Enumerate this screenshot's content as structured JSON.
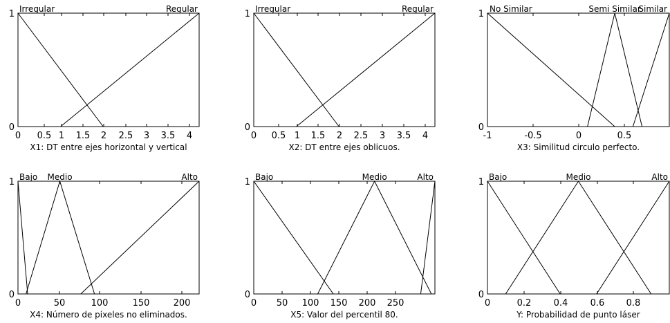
{
  "chart_data": [
    {
      "type": "line",
      "xlabel": "X1: DT entre ejes horizontal y vertical",
      "xlim": [
        0,
        4.25
      ],
      "ylim": [
        0,
        1
      ],
      "xticks": [
        "0",
        "0.5",
        "1",
        "1.5",
        "2",
        "2.5",
        "3",
        "3.5",
        "4"
      ],
      "yticks": [
        "0",
        "1"
      ],
      "series": [
        {
          "name": "Irregular",
          "x": [
            0,
            2
          ],
          "y": [
            1,
            0
          ]
        },
        {
          "name": "Regular",
          "x": [
            1,
            4.25
          ],
          "y": [
            0,
            1
          ]
        }
      ]
    },
    {
      "type": "line",
      "xlabel": "X2: DT entre ejes oblicuos.",
      "xlim": [
        0,
        4.25
      ],
      "ylim": [
        0,
        1
      ],
      "xticks": [
        "0",
        "0.5",
        "1",
        "1.5",
        "2",
        "2.5",
        "3",
        "3.5",
        "4"
      ],
      "yticks": [
        "0",
        "1"
      ],
      "series": [
        {
          "name": "Irregular",
          "x": [
            0,
            2
          ],
          "y": [
            1,
            0
          ]
        },
        {
          "name": "Regular",
          "x": [
            1,
            4.25
          ],
          "y": [
            0,
            1
          ]
        }
      ]
    },
    {
      "type": "line",
      "xlabel": "X3: Similitud circulo perfecto.",
      "xlim": [
        -1,
        1
      ],
      "ylim": [
        0,
        1
      ],
      "xticks": [
        "-1",
        "-0.5",
        "0",
        "0.5"
      ],
      "yticks": [
        "0",
        "1"
      ],
      "series": [
        {
          "name": "No Similar",
          "x": [
            -1,
            0.4
          ],
          "y": [
            1,
            0
          ]
        },
        {
          "name": "Semi Similar",
          "x": [
            0.1,
            0.4,
            0.7
          ],
          "y": [
            0,
            1,
            0
          ]
        },
        {
          "name": "Similar",
          "x": [
            0.6,
            1
          ],
          "y": [
            0,
            1
          ]
        }
      ]
    },
    {
      "type": "line",
      "xlabel": "X4: Número de pixeles no eliminados.",
      "xlim": [
        0,
        225
      ],
      "ylim": [
        0,
        1
      ],
      "xticks": [
        "0",
        "50",
        "100",
        "150",
        "200"
      ],
      "yticks": [
        "0",
        "1"
      ],
      "series": [
        {
          "name": "Bajo",
          "x": [
            0,
            12
          ],
          "y": [
            1,
            0
          ]
        },
        {
          "name": "Medio",
          "x": [
            10,
            52,
            95
          ],
          "y": [
            0,
            1,
            0
          ]
        },
        {
          "name": "Alto",
          "x": [
            78,
            225
          ],
          "y": [
            0,
            1
          ]
        }
      ]
    },
    {
      "type": "line",
      "xlabel": "X5: Valor del percentil 80.",
      "xlim": [
        0,
        255
      ],
      "ylim": [
        0,
        1
      ],
      "xticks": [
        "0",
        "50",
        "100",
        "150",
        "200",
        "250"
      ],
      "yticks": [
        "0",
        "1"
      ],
      "series": [
        {
          "name": "Bajo",
          "x": [
            0,
            112
          ],
          "y": [
            1,
            0
          ]
        },
        {
          "name": "Medio",
          "x": [
            90,
            170,
            250
          ],
          "y": [
            0,
            1,
            0
          ]
        },
        {
          "name": "Alto",
          "x": [
            235,
            255
          ],
          "y": [
            0,
            1
          ]
        }
      ]
    },
    {
      "type": "line",
      "xlabel": "Y: Probabilidad de punto láser",
      "xlim": [
        0,
        1
      ],
      "ylim": [
        0,
        1
      ],
      "xticks": [
        "0",
        "0.2",
        "0.4",
        "0.6",
        "0.8"
      ],
      "yticks": [
        "0",
        "1"
      ],
      "series": [
        {
          "name": "Bajo",
          "x": [
            0,
            0.4
          ],
          "y": [
            1,
            0
          ]
        },
        {
          "name": "Medio",
          "x": [
            0.1,
            0.5,
            0.9
          ],
          "y": [
            0,
            1,
            0
          ]
        },
        {
          "name": "Alto",
          "x": [
            0.6,
            1
          ],
          "y": [
            0,
            1
          ]
        }
      ]
    }
  ]
}
